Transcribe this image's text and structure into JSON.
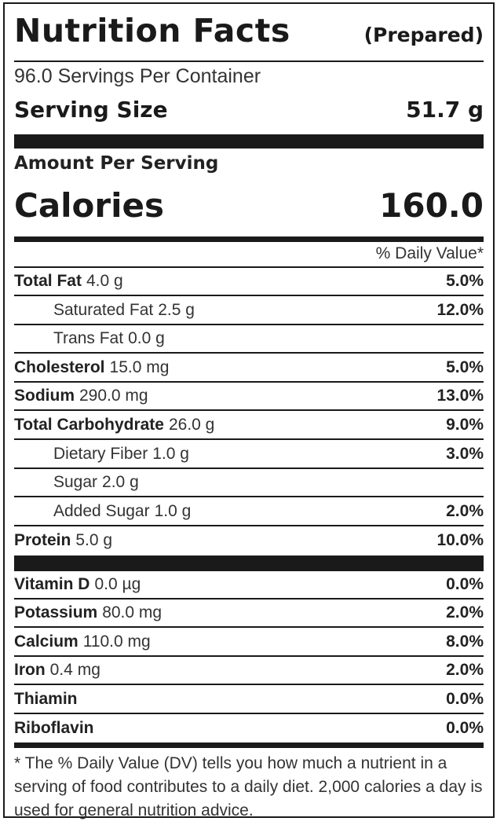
{
  "header": {
    "title": "Nutrition Facts",
    "subtitle": "(Prepared)"
  },
  "servings_per_container": "96.0 Servings Per Container",
  "serving_size": {
    "label": "Serving Size",
    "value": "51.7 g"
  },
  "amount_per_serving": "Amount Per Serving",
  "calories": {
    "label": "Calories",
    "value": "160.0"
  },
  "daily_value_header": "% Daily Value*",
  "nutrients": [
    {
      "name": "Total Fat",
      "amount": "4.0 g",
      "dv": "5.0%",
      "indent": false
    },
    {
      "name": "Saturated Fat",
      "amount": "2.5 g",
      "dv": "12.0%",
      "indent": true
    },
    {
      "name": "Trans Fat",
      "amount": "0.0 g",
      "dv": "",
      "indent": true
    },
    {
      "name": "Cholesterol",
      "amount": "15.0 mg",
      "dv": "5.0%",
      "indent": false
    },
    {
      "name": "Sodium",
      "amount": "290.0 mg",
      "dv": "13.0%",
      "indent": false
    },
    {
      "name": "Total Carbohydrate",
      "amount": "26.0 g",
      "dv": "9.0%",
      "indent": false
    },
    {
      "name": "Dietary Fiber",
      "amount": "1.0 g",
      "dv": "3.0%",
      "indent": true
    },
    {
      "name": "Sugar",
      "amount": "2.0 g",
      "dv": "",
      "indent": true
    },
    {
      "name": "Added Sugar",
      "amount": "1.0 g",
      "dv": "2.0%",
      "indent": true
    },
    {
      "name": "Protein",
      "amount": "5.0 g",
      "dv": "10.0%",
      "indent": false
    }
  ],
  "vitamins": [
    {
      "name": "Vitamin D",
      "amount": "0.0 µg",
      "dv": "0.0%"
    },
    {
      "name": "Potassium",
      "amount": "80.0 mg",
      "dv": "2.0%"
    },
    {
      "name": "Calcium",
      "amount": "110.0 mg",
      "dv": "8.0%"
    },
    {
      "name": "Iron",
      "amount": "0.4 mg",
      "dv": "2.0%"
    },
    {
      "name": "Thiamin",
      "amount": "",
      "dv": "0.0%"
    },
    {
      "name": "Riboflavin",
      "amount": "",
      "dv": "0.0%"
    }
  ],
  "footnote": "* The % Daily Value (DV) tells you how much a nutrient in a serving of food contributes to a daily diet. 2,000 calories a day is used for general nutrition advice."
}
